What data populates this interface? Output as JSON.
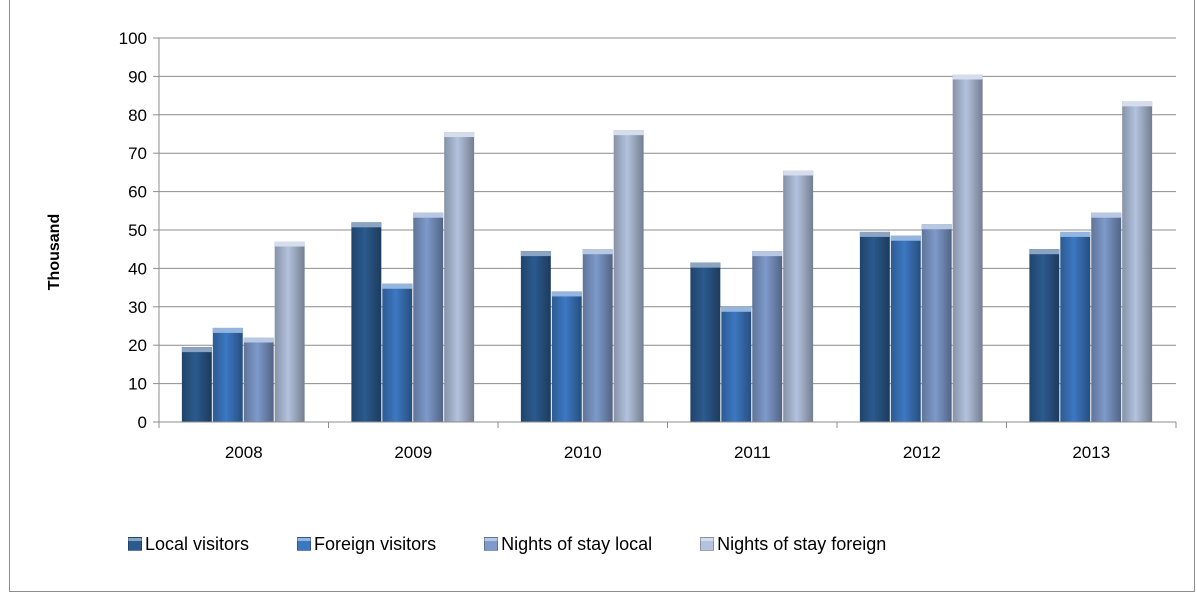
{
  "chart_data": {
    "type": "bar",
    "categories": [
      "2008",
      "2009",
      "2010",
      "2011",
      "2012",
      "2013"
    ],
    "series": [
      {
        "name": "Local visitors",
        "color": "#2b5a8e",
        "values": [
          19.5,
          52,
          44.5,
          41.5,
          49.5,
          45
        ]
      },
      {
        "name": "Foreign visitors",
        "color": "#3c78c2",
        "values": [
          24.5,
          36,
          34,
          30,
          48.5,
          49.5
        ]
      },
      {
        "name": "Nights of stay local",
        "color": "#7e9acb",
        "values": [
          22,
          54.5,
          45,
          44.5,
          51.5,
          54.5
        ]
      },
      {
        "name": "Nights of stay foreign",
        "color": "#b3c2de",
        "values": [
          47,
          75.5,
          76,
          65.5,
          90.5,
          83.5
        ]
      }
    ],
    "ylabel": "Thousand",
    "xlabel": "",
    "ylim": [
      0,
      100
    ],
    "yticks": [
      0,
      10,
      20,
      30,
      40,
      50,
      60,
      70,
      80,
      90,
      100
    ],
    "grid": true,
    "legend_position": "bottom"
  }
}
